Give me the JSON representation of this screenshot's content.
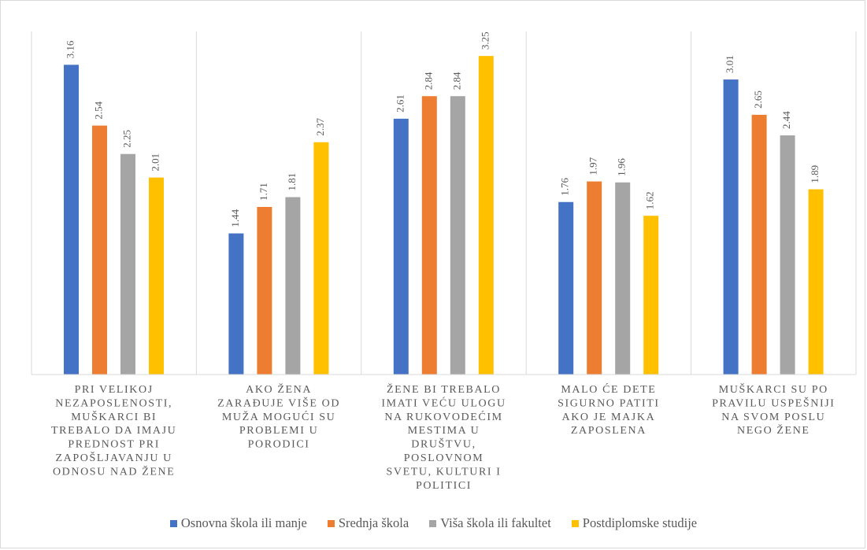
{
  "chart_data": {
    "type": "bar",
    "title": "",
    "xlabel": "",
    "ylabel": "",
    "ylim": [
      0,
      3.5
    ],
    "grid": false,
    "legend_position": "bottom",
    "categories": [
      [
        "PRI VELIKOJ",
        "NEZAPOSLENOSTI,",
        "MUŠKARCI BI",
        "TREBALO DA IMAJU",
        "PREDNOST PRI",
        "ZAPOŠLJAVANJU U",
        "ODNOSU NAD ŽENE"
      ],
      [
        "AKO ŽENA",
        "ZARAĐUJE VIŠE OD",
        "MUŽA MOGUĆI SU",
        "PROBLEMI U",
        "PORODICI"
      ],
      [
        "ŽENE BI TREBALO",
        "IMATI VEĆU ULOGU",
        "NA RUKOVODEĆIM",
        "MESTIMA U",
        "DRUŠTVU,",
        "POSLOVNOM",
        "SVETU, KULTURI I",
        "POLITICI"
      ],
      [
        "MALO ĆE DETE",
        "SIGURNO PATITI",
        "AKO JE MAJKA",
        "ZAPOSLENA"
      ],
      [
        "MUŠKARCI SU PO",
        "PRAVILU USPEŠNIJI",
        "NA SVOM POSLU",
        "NEGO ŽENE"
      ]
    ],
    "series": [
      {
        "name": "Osnovna škola ili manje",
        "color": "#4472c4",
        "values": [
          3.16,
          1.44,
          2.61,
          1.76,
          3.01
        ],
        "labels": [
          "3.16",
          "1.44",
          "2.61",
          "1.76",
          "3.01"
        ]
      },
      {
        "name": "Srednja škola",
        "color": "#ed7d31",
        "values": [
          2.54,
          1.71,
          2.84,
          1.97,
          2.65
        ],
        "labels": [
          "2.54",
          "1.71",
          "2.84",
          "1.97",
          "2.65"
        ]
      },
      {
        "name": "Viša škola ili fakultet",
        "color": "#a5a5a5",
        "values": [
          2.25,
          1.81,
          2.84,
          1.96,
          2.44
        ],
        "labels": [
          "2.25",
          "1.81",
          "2.84",
          "1.96",
          "2.44"
        ]
      },
      {
        "name": "Postdiplomske studije",
        "color": "#ffc000",
        "values": [
          2.01,
          2.37,
          3.25,
          1.62,
          1.89
        ],
        "labels": [
          "2.01",
          "2.37",
          "3.25",
          "1.62",
          "1.89"
        ]
      }
    ]
  }
}
